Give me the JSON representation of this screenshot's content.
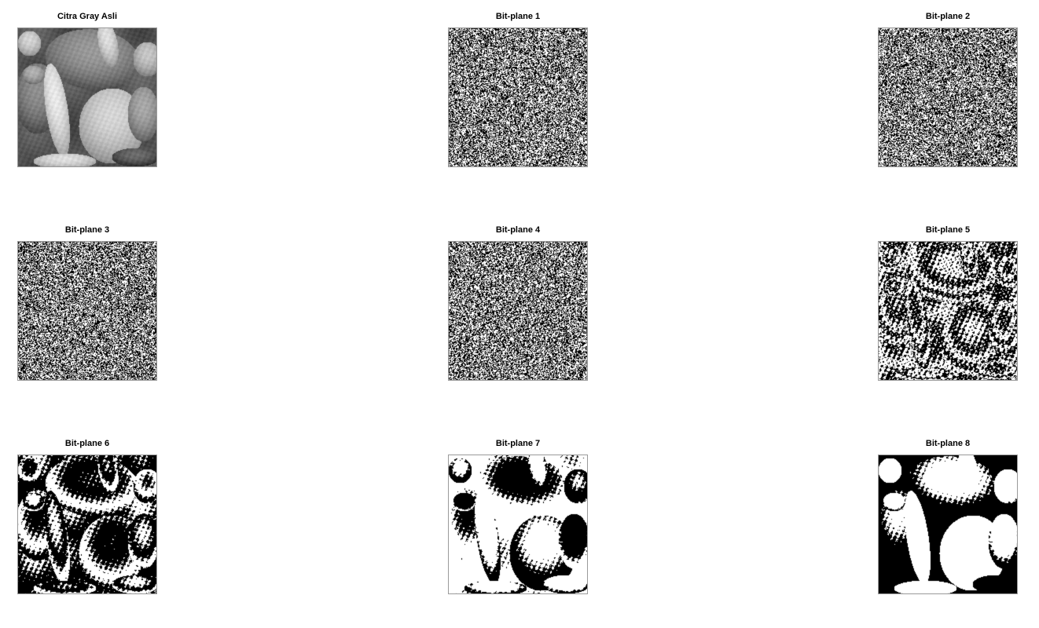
{
  "figure": {
    "panels": [
      {
        "title": "Citra Gray Asli",
        "kind": "grayscale"
      },
      {
        "title": "Bit-plane 1",
        "kind": "bitplane",
        "bit": 1
      },
      {
        "title": "Bit-plane 2",
        "kind": "bitplane",
        "bit": 2
      },
      {
        "title": "Bit-plane 3",
        "kind": "bitplane",
        "bit": 3
      },
      {
        "title": "Bit-plane 4",
        "kind": "bitplane",
        "bit": 4
      },
      {
        "title": "Bit-plane 5",
        "kind": "bitplane",
        "bit": 5
      },
      {
        "title": "Bit-plane 6",
        "kind": "bitplane",
        "bit": 6
      },
      {
        "title": "Bit-plane 7",
        "kind": "bitplane",
        "bit": 7
      },
      {
        "title": "Bit-plane 8",
        "kind": "bitplane",
        "bit": 8
      }
    ],
    "colors": {
      "background": "#ffffff",
      "title_text": "#000000",
      "white": "#ffffff",
      "black": "#000000"
    }
  }
}
